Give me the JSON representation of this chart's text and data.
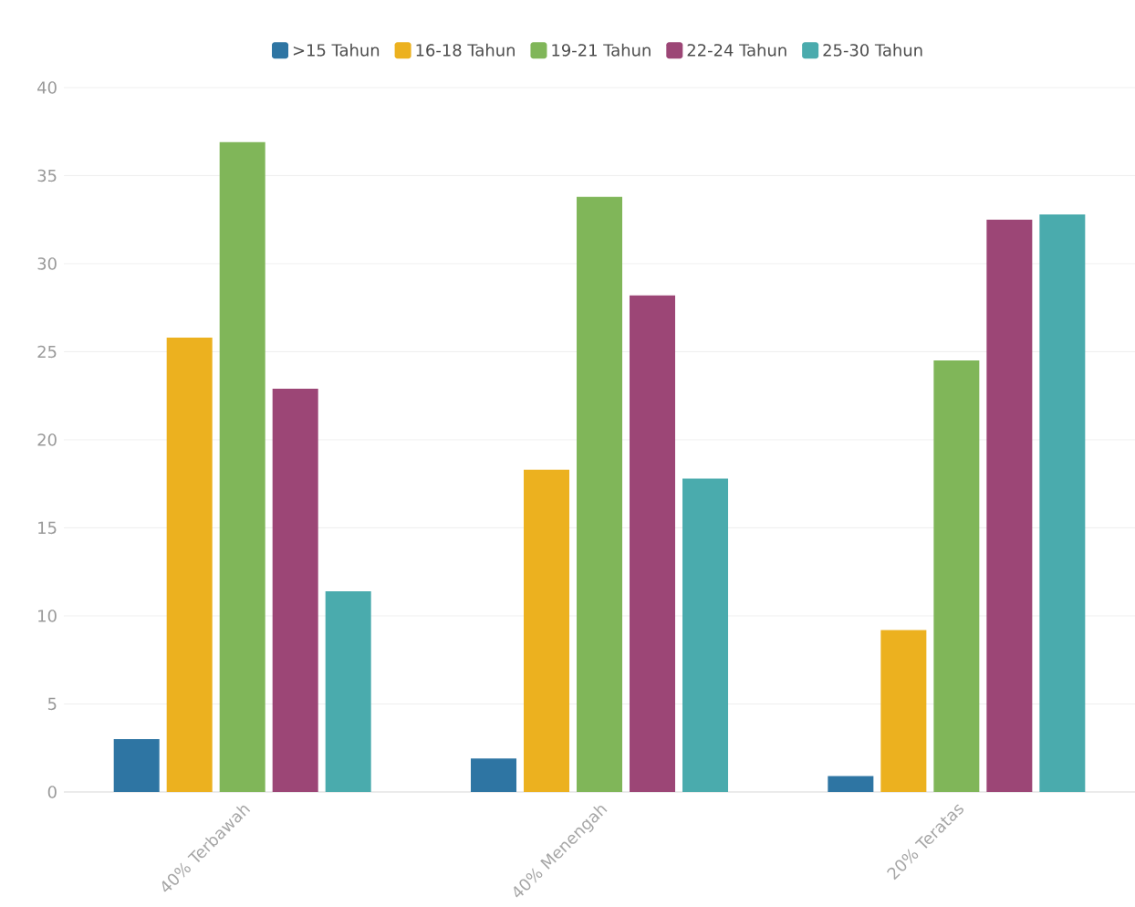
{
  "chart_data": {
    "type": "bar",
    "categories": [
      "40% Terbawah",
      "40% Menengah",
      "20% Teratas"
    ],
    "series": [
      {
        "name": ">15 Tahun",
        "color": "#2e75a3",
        "values": [
          3.0,
          1.9,
          0.9
        ]
      },
      {
        "name": "16-18 Tahun",
        "color": "#ecb11f",
        "values": [
          25.8,
          18.3,
          9.2
        ]
      },
      {
        "name": "19-21 Tahun",
        "color": "#80b659",
        "values": [
          36.9,
          33.8,
          24.5
        ]
      },
      {
        "name": "22-24 Tahun",
        "color": "#9c4676",
        "values": [
          22.9,
          28.2,
          32.5
        ]
      },
      {
        "name": "25-30 Tahun",
        "color": "#4aabad",
        "values": [
          11.4,
          17.8,
          32.8
        ]
      }
    ],
    "ylim": [
      0,
      40
    ],
    "yticks": [
      0,
      5,
      10,
      15,
      20,
      25,
      30,
      35,
      40
    ],
    "grid": "y",
    "legend": "top"
  }
}
